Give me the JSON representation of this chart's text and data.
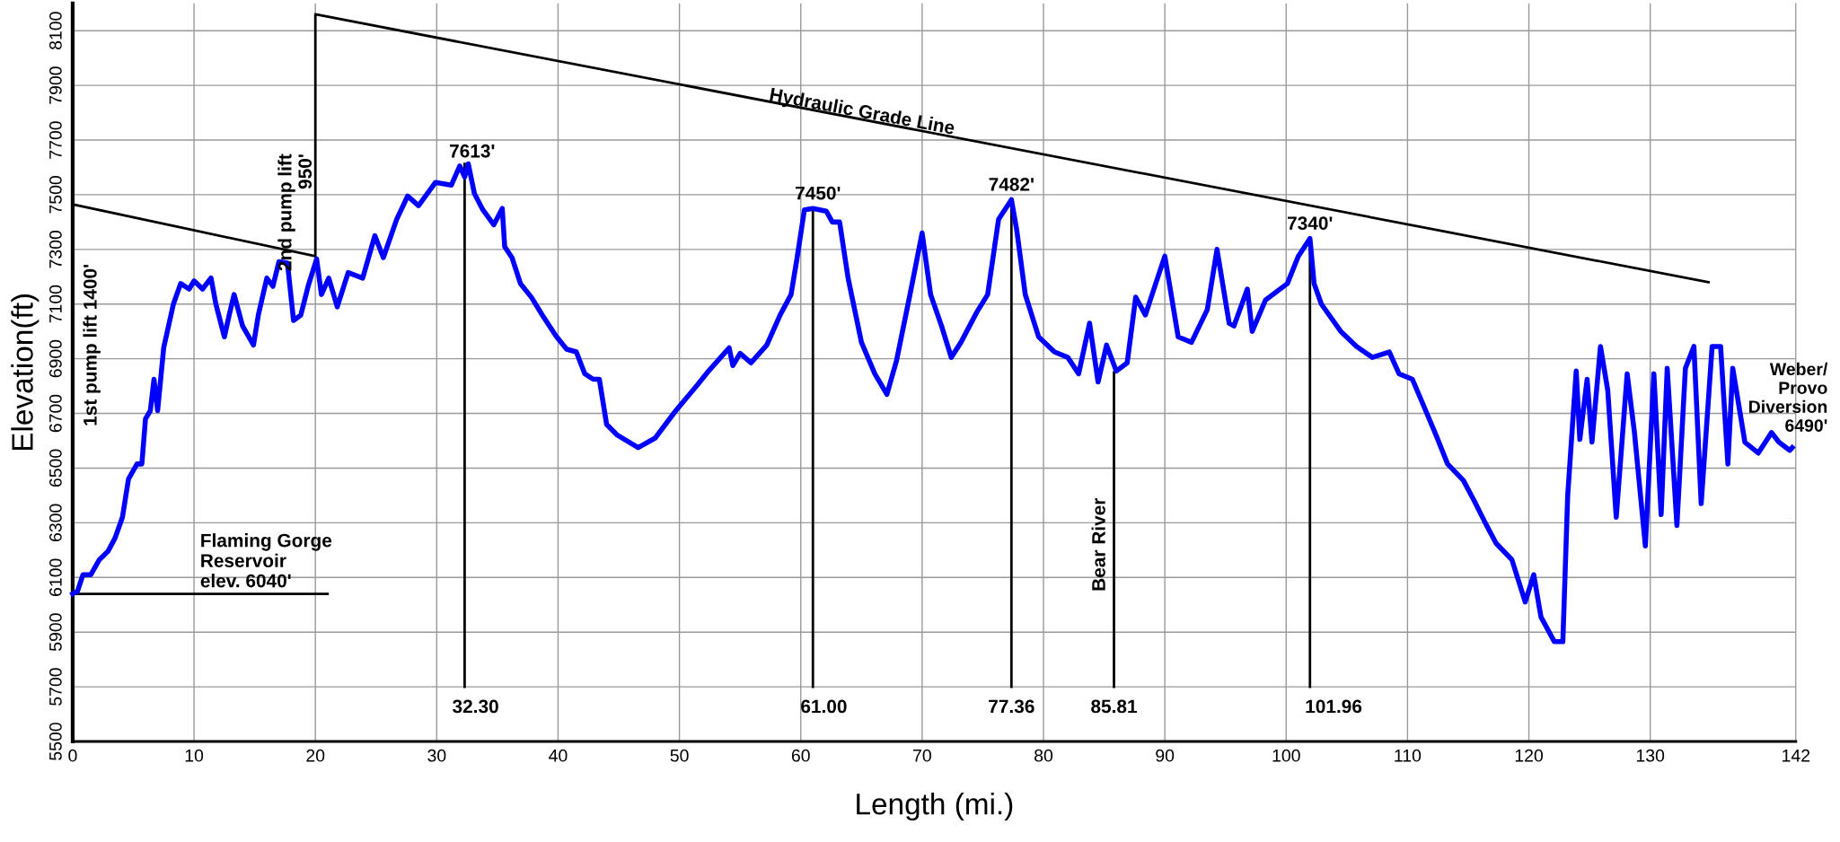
{
  "chart_data": {
    "type": "line",
    "xlabel": "Length (mi.)",
    "ylabel": "Elevation(ft)",
    "xlim": [
      0,
      142
    ],
    "xticks": [
      0,
      10,
      20,
      30,
      40,
      50,
      60,
      70,
      80,
      90,
      100,
      110,
      120,
      130,
      142
    ],
    "ylim": [
      5500,
      8200
    ],
    "yticks": [
      5500,
      5700,
      5900,
      6100,
      6300,
      6500,
      6700,
      6900,
      7100,
      7300,
      7500,
      7700,
      7900,
      8100
    ],
    "grid": true,
    "legend": false,
    "series": [
      {
        "color": "#0000ff",
        "x": [
          0,
          0.4,
          0.85,
          1.5,
          2.2,
          2.9,
          3.5,
          4.1,
          4.6,
          5.3,
          5.7,
          6.0,
          6.4,
          6.7,
          7.0,
          7.5,
          7.8,
          8.3,
          8.9,
          9.6,
          10,
          10.7,
          11.4,
          11.8,
          12.5,
          12.9,
          13.3,
          14.0,
          14.9,
          15.3,
          16.0,
          16.5,
          17.0,
          17.7,
          18.2,
          18.8,
          19.4,
          20.1,
          20.5,
          21.1,
          21.8,
          22.7,
          23.9,
          24.9,
          25.6,
          26.7,
          27.6,
          28.5,
          29.9,
          31.2,
          31.9,
          32.3,
          32.6,
          33.1,
          33.8,
          34.7,
          35.4,
          35.6,
          36.2,
          36.9,
          37.8,
          38.7,
          39.8,
          40.7,
          41.5,
          42.2,
          42.9,
          43.4,
          44.0,
          44.9,
          46.6,
          48.0,
          49.7,
          51.5,
          52.4,
          53.7,
          54.1,
          54.4,
          55.0,
          55.9,
          57.2,
          58.3,
          59.2,
          59.7,
          60.3,
          61.0,
          62.1,
          62.6,
          63.2,
          63.9,
          65.0,
          66.1,
          67.1,
          67.9,
          69.0,
          70.0,
          70.7,
          71.6,
          72.4,
          73.2,
          74.5,
          75.4,
          76.3,
          77.36,
          77.8,
          78.5,
          79.6,
          80.9,
          82.0,
          82.9,
          83.8,
          84.5,
          85.2,
          86.0,
          86.9,
          87.6,
          88.4,
          89.1,
          90.0,
          91.1,
          92.2,
          93.5,
          94.3,
          95.3,
          95.7,
          96.8,
          97.2,
          98.3,
          100.1,
          101.0,
          101.96,
          102.3,
          102.9,
          104.5,
          105.8,
          107.1,
          108.5,
          109.3,
          110.4,
          111.5,
          112.4,
          113.3,
          114.6,
          115.5,
          116.4,
          117.3,
          118.6,
          119.7,
          120.4,
          121.0,
          122.1,
          122.8,
          123.2,
          123.9,
          124.2,
          124.8,
          125.2,
          125.9,
          126.5,
          127.2,
          128.1,
          128.7,
          129.6,
          130.3,
          130.9,
          131.4,
          132.2,
          132.9,
          133.6,
          134.2,
          135.1,
          135.8,
          136.4,
          136.8,
          137.8,
          138.9,
          140.0,
          140.6,
          141.5,
          141.7
        ],
        "values": [
          6040,
          6050,
          6110,
          6110,
          6165,
          6195,
          6245,
          6320,
          6460,
          6515,
          6515,
          6680,
          6710,
          6825,
          6710,
          6940,
          7000,
          7100,
          7175,
          7155,
          7185,
          7155,
          7195,
          7100,
          6980,
          7060,
          7135,
          7020,
          6950,
          7060,
          7195,
          7165,
          7255,
          7250,
          7040,
          7060,
          7165,
          7265,
          7135,
          7195,
          7090,
          7215,
          7195,
          7350,
          7270,
          7410,
          7495,
          7460,
          7545,
          7535,
          7605,
          7565,
          7613,
          7505,
          7445,
          7390,
          7450,
          7310,
          7270,
          7175,
          7125,
          7060,
          6985,
          6935,
          6925,
          6845,
          6825,
          6825,
          6660,
          6620,
          6575,
          6610,
          6710,
          6805,
          6855,
          6920,
          6940,
          6875,
          6920,
          6885,
          6950,
          7060,
          7135,
          7270,
          7445,
          7450,
          7440,
          7400,
          7400,
          7195,
          6960,
          6845,
          6770,
          6895,
          7135,
          7360,
          7135,
          7020,
          6905,
          6960,
          7070,
          7135,
          7410,
          7482,
          7370,
          7135,
          6980,
          6925,
          6905,
          6845,
          7030,
          6815,
          6950,
          6855,
          6885,
          7125,
          7060,
          7155,
          7275,
          6980,
          6960,
          7080,
          7300,
          7030,
          7020,
          7155,
          7000,
          7115,
          7175,
          7275,
          7340,
          7175,
          7100,
          7000,
          6945,
          6905,
          6925,
          6845,
          6825,
          6710,
          6615,
          6515,
          6455,
          6380,
          6300,
          6225,
          6165,
          6010,
          6110,
          5955,
          5865,
          5865,
          6400,
          6855,
          6605,
          6825,
          6595,
          6945,
          6785,
          6320,
          6845,
          6630,
          6215,
          6845,
          6330,
          6865,
          6290,
          6865,
          6945,
          6370,
          6945,
          6945,
          6515,
          6865,
          6595,
          6555,
          6630,
          6595,
          6565,
          6575
        ]
      },
      {
        "color": "#000000",
        "x": [
          0,
          20,
          20,
          134.8
        ],
        "values": [
          7465,
          7275,
          8160,
          7180
        ]
      },
      {
        "color": "#000000",
        "x": [
          0,
          21
        ],
        "values": [
          6040,
          6040
        ]
      },
      {
        "color": "#000000",
        "x": [
          32.3,
          32.3
        ],
        "values": [
          5700,
          7613
        ]
      },
      {
        "color": "#000000",
        "x": [
          61.0,
          61.0
        ],
        "values": [
          5700,
          7450
        ]
      },
      {
        "color": "#000000",
        "x": [
          77.36,
          77.36
        ],
        "values": [
          5700,
          7482
        ]
      },
      {
        "color": "#000000",
        "x": [
          85.81,
          85.81
        ],
        "values": [
          5700,
          6850
        ]
      },
      {
        "color": "#000000",
        "x": [
          101.96,
          101.96
        ],
        "values": [
          5700,
          7340
        ]
      }
    ],
    "annotations": [
      "Hydraulic Grade Line",
      {
        "text": "2nd pump lift\n950'",
        "x": 20,
        "y": 7650
      },
      "1st pump lift 1400'",
      {
        "text": "Flaming Gorge\nReservoir\nelev. 6040'",
        "x": 10.5,
        "y": 6050
      },
      {
        "text": "7613'",
        "x": 32.3,
        "y": 7613
      },
      {
        "text": "32.30",
        "x": 32.3,
        "y": 5700
      },
      {
        "text": "7450'",
        "x": 61.0,
        "y": 7450
      },
      {
        "text": "61.00",
        "x": 61.0,
        "y": 5700
      },
      {
        "text": "7482'",
        "x": 77.36,
        "y": 7482
      },
      {
        "text": "77.36",
        "x": 77.36,
        "y": 5700
      },
      {
        "text": "Bear River",
        "x": 85.81,
        "y": 6220
      },
      {
        "text": "85.81",
        "x": 85.81,
        "y": 5700
      },
      {
        "text": "7340'",
        "x": 101.96,
        "y": 7340
      },
      {
        "text": "101.96",
        "x": 101.96,
        "y": 5700
      },
      "Weber/\nProvo\nDiversion\n6490'"
    ]
  }
}
